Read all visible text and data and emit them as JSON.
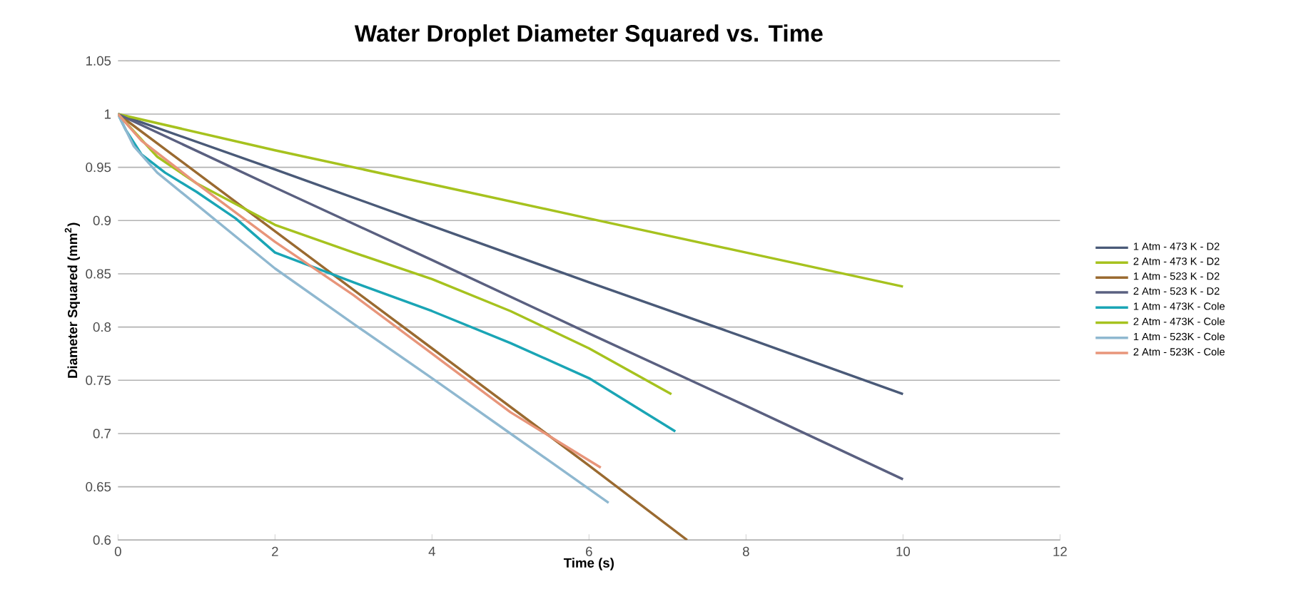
{
  "chart_data": {
    "type": "line",
    "title": "Water Droplet Diameter Squared vs. Time",
    "xlabel": "Time (s)",
    "ylabel": "Diameter Squared (mm$^{2}$)",
    "xlim": [
      0,
      12
    ],
    "xticks": [
      0,
      2,
      4,
      6,
      8,
      10,
      12
    ],
    "ylim": [
      0.6,
      1.05
    ],
    "yticks": [
      0.6,
      0.65,
      0.7,
      0.75,
      0.8,
      0.85,
      0.9,
      0.95,
      1,
      1.05
    ],
    "grid": "y",
    "legend": "right",
    "line_style": "solid",
    "marker": "none",
    "series": [
      {
        "name": "1 Atm - 473 K - D2",
        "color": "#4a5a78",
        "x": [
          0,
          2,
          4,
          6,
          8,
          10
        ],
        "values": [
          1,
          0.948,
          0.895,
          0.842,
          0.79,
          0.737
        ]
      },
      {
        "name": "2 Atm - 473 K - D2",
        "color": "#a6c21e",
        "x": [
          0,
          2,
          4,
          6,
          8,
          10
        ],
        "values": [
          1,
          0.966,
          0.934,
          0.902,
          0.87,
          0.838
        ]
      },
      {
        "name": "1 Atm - 523 K - D2",
        "color": "#9a6a30",
        "x": [
          0,
          2,
          4,
          6,
          7.25
        ],
        "values": [
          1,
          0.89,
          0.78,
          0.67,
          0.6
        ]
      },
      {
        "name": "2 Atm - 523 K - D2",
        "color": "#5a6080",
        "x": [
          0,
          2,
          4,
          6,
          8,
          10
        ],
        "values": [
          1,
          0.931,
          0.863,
          0.794,
          0.726,
          0.657
        ]
      },
      {
        "name": "1 Atm - 473K - Cole",
        "color": "#1aa5b5",
        "x": [
          0,
          0.1,
          0.3,
          0.6,
          1,
          1.5,
          2,
          3,
          4,
          5,
          6,
          7.1
        ],
        "values": [
          1,
          0.985,
          0.962,
          0.945,
          0.927,
          0.902,
          0.87,
          0.842,
          0.815,
          0.785,
          0.752,
          0.702
        ]
      },
      {
        "name": "2 Atm - 473K - Cole",
        "color": "#a6c21e",
        "x": [
          0,
          0.5,
          1,
          2,
          3,
          4,
          5,
          6,
          7.05
        ],
        "values": [
          1,
          0.96,
          0.935,
          0.896,
          0.87,
          0.845,
          0.815,
          0.78,
          0.737
        ]
      },
      {
        "name": "1 Atm - 523K - Cole",
        "color": "#8fb8d0",
        "x": [
          0,
          0.2,
          0.5,
          1,
          2,
          3,
          4,
          5,
          6.25
        ],
        "values": [
          1,
          0.97,
          0.945,
          0.915,
          0.855,
          0.803,
          0.752,
          0.7,
          0.635
        ]
      },
      {
        "name": "2 Atm - 523K - Cole",
        "color": "#e8957a",
        "x": [
          0,
          0.3,
          1,
          2,
          3,
          4,
          5,
          6.15
        ],
        "values": [
          1,
          0.975,
          0.935,
          0.88,
          0.83,
          0.775,
          0.72,
          0.668
        ]
      }
    ]
  }
}
